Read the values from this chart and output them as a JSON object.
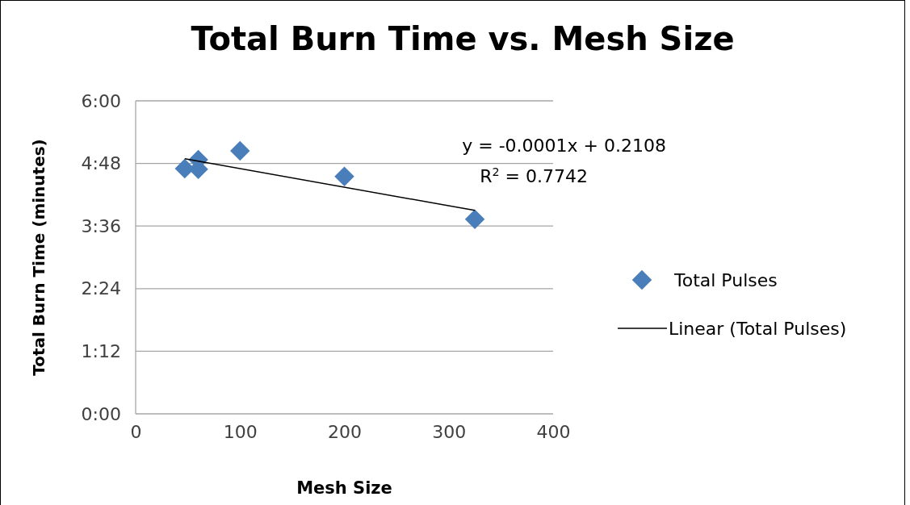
{
  "chart_data": {
    "type": "scatter",
    "title": "Total Burn Time vs. Mesh Size",
    "xlabel": "Mesh Size",
    "ylabel": "Total Burn Time (minutes)",
    "xlim": [
      0,
      400
    ],
    "xticks": [
      0,
      100,
      200,
      300,
      400
    ],
    "ylim": [
      0,
      6
    ],
    "yticks": [
      {
        "value": 0,
        "label": "0:00"
      },
      {
        "value": 1.2,
        "label": "1:12"
      },
      {
        "value": 2.4,
        "label": "2:24"
      },
      {
        "value": 3.6,
        "label": "3:36"
      },
      {
        "value": 4.8,
        "label": "4:48"
      },
      {
        "value": 6,
        "label": "6:00"
      }
    ],
    "grid": "y",
    "legend": "right",
    "series": [
      {
        "name": "Total Pulses",
        "marker": "diamond",
        "color": "#4a7ebb",
        "x": [
          47,
          60,
          60,
          100,
          200,
          325
        ],
        "values": [
          4.7,
          4.87,
          4.69,
          5.04,
          4.55,
          3.73
        ]
      },
      {
        "name": "Linear (Total Pulses)",
        "type": "line",
        "color": "#000000",
        "x": [
          47,
          325
        ],
        "values": [
          4.89,
          3.9
        ]
      }
    ],
    "annotations": [
      "y = -0.0001x + 0.2108",
      "R$^{2}$ = 0.7742"
    ]
  }
}
